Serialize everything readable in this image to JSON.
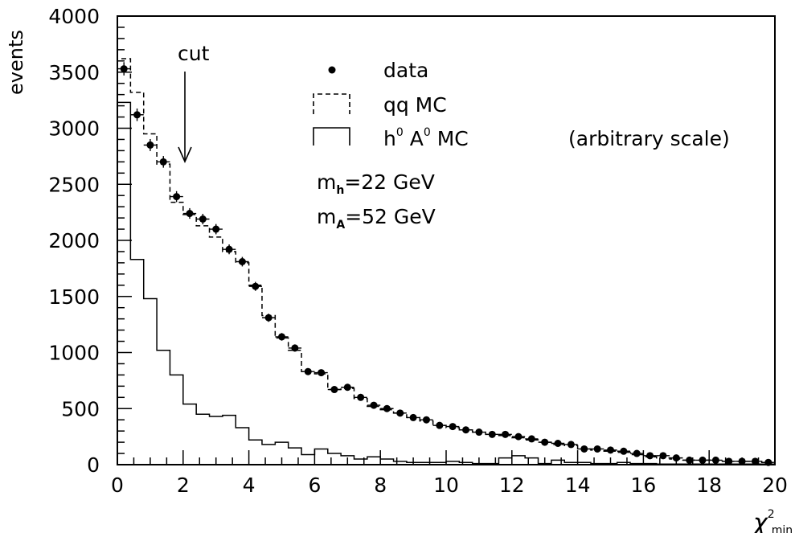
{
  "chart_data": {
    "type": "histogram",
    "xlim": [
      0,
      20
    ],
    "ylim": [
      0,
      4000
    ],
    "bin_width": 0.4,
    "xticks": [
      "0",
      "2",
      "4",
      "6",
      "8",
      "10",
      "12",
      "14",
      "16",
      "18",
      "20"
    ],
    "yticks": [
      "0",
      "500",
      "1000",
      "1500",
      "2000",
      "2500",
      "3000",
      "3500",
      "4000"
    ],
    "ylabel": "events",
    "xlabel": {
      "main": "χ",
      "sup": "2",
      "sub": "min"
    },
    "annotation": {
      "text": "cut",
      "x": 2.0
    },
    "legend": {
      "data": "data",
      "qq": "qq MC",
      "signal_main": "h",
      "signal_sup1": "0",
      "signal_mid": " A",
      "signal_sup2": "0",
      "signal_tail": " MC",
      "signal_note": "(arbitrary scale)"
    },
    "params": [
      {
        "sym": "m",
        "sub": "h",
        "eq": "=22 GeV"
      },
      {
        "sym": "m",
        "sub": "A",
        "eq": "=52 GeV"
      }
    ],
    "series": [
      {
        "name": "data",
        "style": "points",
        "x": [
          0.2,
          0.6,
          1.0,
          1.4,
          1.8,
          2.2,
          2.6,
          3.0,
          3.4,
          3.8,
          4.2,
          4.6,
          5.0,
          5.4,
          5.8,
          6.2,
          6.6,
          7.0,
          7.4,
          7.8,
          8.2,
          8.6,
          9.0,
          9.4,
          9.8,
          10.2,
          10.6,
          11.0,
          11.4,
          11.8,
          12.2,
          12.6,
          13.0,
          13.4,
          13.8,
          14.2,
          14.6,
          15.0,
          15.4,
          15.8,
          16.2,
          16.6,
          17.0,
          17.4,
          17.8,
          18.2,
          18.6,
          19.0,
          19.4,
          19.8
        ],
        "values": [
          3530,
          3120,
          2850,
          2700,
          2390,
          2240,
          2190,
          2100,
          1920,
          1810,
          1590,
          1310,
          1140,
          1040,
          830,
          820,
          670,
          690,
          600,
          530,
          500,
          460,
          420,
          400,
          350,
          340,
          310,
          290,
          270,
          270,
          250,
          230,
          200,
          190,
          180,
          140,
          140,
          130,
          120,
          100,
          80,
          80,
          60,
          40,
          40,
          40,
          30,
          30,
          30,
          20
        ]
      },
      {
        "name": "qq MC",
        "style": "dashed-step",
        "values": [
          3620,
          3320,
          2950,
          2680,
          2340,
          2230,
          2130,
          2030,
          1900,
          1800,
          1600,
          1330,
          1130,
          1020,
          830,
          810,
          670,
          680,
          590,
          520,
          490,
          460,
          420,
          390,
          350,
          330,
          310,
          290,
          270,
          260,
          240,
          220,
          200,
          180,
          170,
          140,
          130,
          120,
          110,
          90,
          70,
          60,
          50,
          40,
          40,
          40,
          30,
          30,
          30,
          20
        ]
      },
      {
        "name": "h0 A0 MC",
        "style": "solid-step",
        "values": [
          3230,
          1830,
          1480,
          1020,
          800,
          540,
          450,
          430,
          440,
          330,
          220,
          180,
          200,
          150,
          90,
          140,
          100,
          80,
          50,
          70,
          50,
          30,
          20,
          20,
          20,
          30,
          20,
          10,
          10,
          60,
          80,
          60,
          10,
          40,
          20,
          20,
          10,
          10,
          20,
          10,
          10,
          5,
          5,
          5,
          5,
          5,
          5,
          5,
          5,
          5
        ]
      }
    ]
  }
}
